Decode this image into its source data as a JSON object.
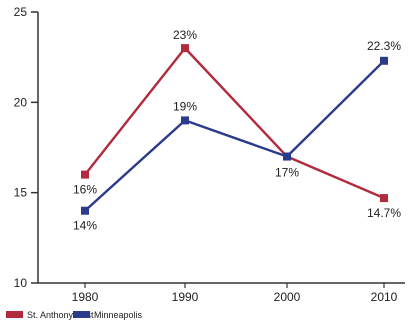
{
  "chart_data": {
    "type": "line",
    "title": "",
    "xlabel": "",
    "ylabel": "",
    "x": [
      1980,
      1990,
      2000,
      2010
    ],
    "x_tick_labels": [
      "1980",
      "1990",
      "2000",
      "2010"
    ],
    "ylim": [
      10,
      25
    ],
    "y_ticks": [
      10,
      15,
      20,
      25
    ],
    "y_tick_labels": [
      "10",
      "15",
      "20",
      "25"
    ],
    "grid": false,
    "legend_position": "bottom-left",
    "series": [
      {
        "name": "St. Anthony East",
        "color": "#b12a3e",
        "values": [
          16,
          23,
          17,
          14.7
        ],
        "labels": [
          "16%",
          "23%",
          "",
          "14.7%"
        ]
      },
      {
        "name": "Minneapolis",
        "color": "#2b3b8c",
        "values": [
          14,
          19,
          17,
          22.3
        ],
        "labels": [
          "14%",
          "19%",
          "17%",
          "22.3%"
        ]
      }
    ]
  }
}
